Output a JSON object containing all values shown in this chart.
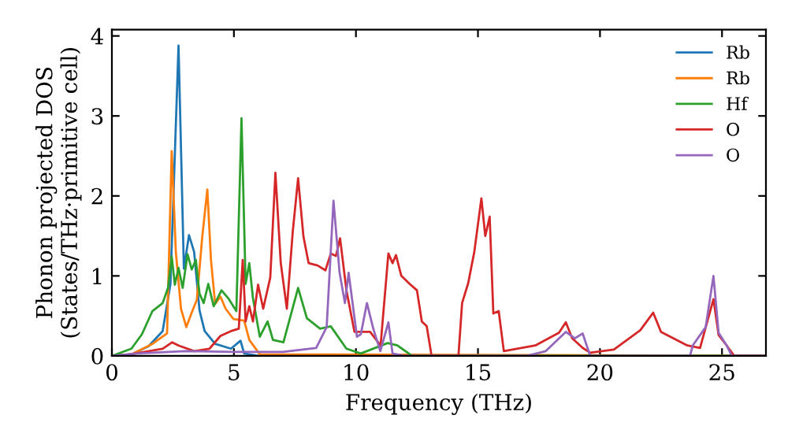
{
  "chart_data": {
    "type": "line",
    "xlabel": "Frequency (THz)",
    "ylabel": "Phonon projected DOS\n(States/THz·primitive cell)",
    "xlim": [
      0,
      26.8
    ],
    "ylim": [
      0,
      4.08
    ],
    "xticks": [
      0,
      5,
      10,
      15,
      20,
      25
    ],
    "yticks": [
      0,
      1,
      2,
      3,
      4
    ],
    "legend": "top right",
    "grid": false,
    "series": [
      {
        "name": "Rb",
        "color": "#1f77b4",
        "x": [
          0,
          0.8,
          1.5,
          2.08,
          2.4,
          2.73,
          2.95,
          3.16,
          3.37,
          3.59,
          3.8,
          4.23,
          4.88,
          5.27,
          5.42,
          6.0,
          26.8
        ],
        "values": [
          0,
          0.02,
          0.12,
          0.31,
          0.9,
          3.88,
          1.09,
          1.51,
          1.3,
          0.57,
          0.31,
          0.15,
          0.09,
          0.19,
          0.03,
          0,
          0
        ]
      },
      {
        "name": "Rb",
        "color": "#ff7f0e",
        "x": [
          0,
          0.8,
          1.66,
          2.26,
          2.45,
          2.62,
          2.83,
          3.05,
          3.27,
          3.48,
          3.7,
          3.91,
          4.06,
          4.23,
          4.45,
          4.66,
          4.98,
          5.42,
          5.63,
          6.06,
          26.8
        ],
        "values": [
          0,
          0.02,
          0.15,
          0.28,
          2.56,
          1.3,
          0.59,
          0.36,
          0.54,
          0.7,
          1.48,
          2.08,
          1.2,
          0.65,
          0.74,
          0.59,
          0.46,
          0.44,
          0.2,
          0.02,
          0
        ]
      },
      {
        "name": "Hf",
        "color": "#2ca02c",
        "x": [
          0,
          0.8,
          1.23,
          1.66,
          2.08,
          2.3,
          2.45,
          2.58,
          2.73,
          2.9,
          3.1,
          3.27,
          3.44,
          3.59,
          3.76,
          3.95,
          4.17,
          4.49,
          4.77,
          5.1,
          5.31,
          5.48,
          5.63,
          5.78,
          6.06,
          6.38,
          6.6,
          7.03,
          7.63,
          7.99,
          8.53,
          8.97,
          9.61,
          10.2,
          11.3,
          11.7,
          12.3,
          26.8
        ],
        "values": [
          0,
          0.09,
          0.27,
          0.56,
          0.66,
          0.85,
          1.24,
          0.89,
          1.1,
          0.85,
          1.27,
          1.08,
          1.2,
          0.78,
          0.66,
          0.9,
          0.62,
          0.82,
          0.72,
          0.56,
          2.97,
          0.9,
          1.16,
          0.72,
          0.24,
          0.43,
          0.2,
          0.17,
          0.85,
          0.47,
          0.34,
          0.37,
          0.09,
          0.03,
          0.16,
          0.13,
          0,
          0
        ]
      },
      {
        "name": "O",
        "color": "#d62728",
        "x": [
          0,
          0.4,
          2.08,
          2.47,
          2.73,
          3.37,
          4.0,
          4.45,
          4.88,
          5.2,
          5.36,
          5.48,
          5.63,
          5.78,
          5.99,
          6.2,
          6.49,
          6.7,
          6.92,
          7.17,
          7.41,
          7.63,
          7.85,
          8.06,
          8.43,
          8.75,
          8.97,
          9.18,
          9.35,
          9.61,
          9.94,
          10.26,
          10.58,
          11.01,
          11.33,
          11.5,
          11.64,
          11.86,
          12.2,
          12.5,
          12.7,
          12.9,
          13.1,
          14.2,
          14.35,
          14.6,
          14.85,
          15.14,
          15.3,
          15.48,
          15.63,
          15.85,
          16.06,
          17.35,
          18.32,
          18.6,
          18.86,
          19.29,
          19.6,
          20.57,
          21.65,
          22.18,
          22.5,
          23.58,
          24.1,
          24.65,
          24.86,
          25.19,
          25.5,
          26.8
        ],
        "values": [
          0,
          0,
          0.09,
          0.17,
          0.13,
          0.06,
          0.09,
          0.25,
          0.31,
          0.34,
          1.2,
          0.43,
          0.62,
          0.43,
          0.89,
          0.59,
          0.98,
          2.29,
          1.16,
          0.59,
          1.55,
          2.22,
          1.49,
          1.16,
          1.13,
          1.07,
          1.28,
          1.25,
          1.47,
          0.82,
          0.3,
          0.3,
          0.3,
          0.13,
          1.28,
          1.16,
          1.26,
          1.0,
          0.9,
          0.82,
          0.43,
          0.37,
          0,
          0,
          0.66,
          0.91,
          1.3,
          1.97,
          1.5,
          1.74,
          0.53,
          0.56,
          0.06,
          0.13,
          0.29,
          0.42,
          0.22,
          0.1,
          0.04,
          0.08,
          0.32,
          0.54,
          0.3,
          0.13,
          0.1,
          0.71,
          0.26,
          0.13,
          0,
          0
        ]
      },
      {
        "name": "O",
        "color": "#9467bd",
        "x": [
          0,
          1.0,
          3.0,
          5.0,
          7.0,
          8.37,
          8.8,
          9.08,
          9.33,
          9.55,
          9.7,
          10.04,
          10.2,
          10.45,
          10.71,
          11.0,
          11.33,
          11.5,
          12.0,
          17.0,
          17.78,
          18.6,
          18.97,
          19.29,
          19.6,
          23.69,
          23.8,
          24.33,
          24.65,
          24.86,
          25.19,
          25.4,
          26.8
        ],
        "values": [
          0,
          0.03,
          0.06,
          0.05,
          0.05,
          0.1,
          0.36,
          1.94,
          1.04,
          0.66,
          1.04,
          0.24,
          0.27,
          0.66,
          0.34,
          0.06,
          0.42,
          0.03,
          0,
          0,
          0.06,
          0.3,
          0.22,
          0.28,
          0,
          0,
          0.13,
          0.36,
          1.0,
          0.29,
          0.13,
          0,
          0
        ]
      }
    ]
  }
}
